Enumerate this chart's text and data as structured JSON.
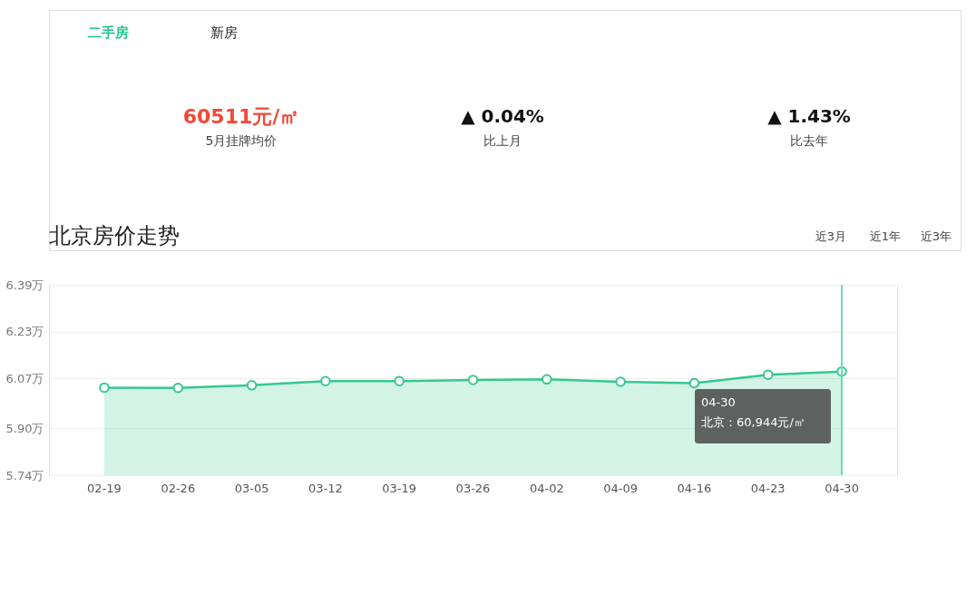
{
  "chart_data": {
    "type": "area",
    "title": "北京房价走势",
    "categories": [
      "02-19",
      "02-26",
      "03-05",
      "03-12",
      "03-19",
      "03-26",
      "04-02",
      "04-09",
      "04-16",
      "04-23",
      "04-30"
    ],
    "series": [
      {
        "color": "#34c88f",
        "values": [
          6.039,
          6.038,
          6.047,
          6.061,
          6.061,
          6.065,
          6.067,
          6.059,
          6.054,
          6.083,
          6.094
        ]
      }
    ],
    "ylim": [
      5.74,
      6.39
    ],
    "yticks": [
      {
        "value": 5.74,
        "label": "5.74万"
      },
      {
        "value": 5.9,
        "label": "5.90万"
      },
      {
        "value": 6.07,
        "label": "6.07万"
      },
      {
        "value": 6.23,
        "label": "6.23万"
      },
      {
        "value": 6.39,
        "label": "6.39万"
      }
    ],
    "grid": "y",
    "marker": "circle",
    "line_style": "solid",
    "ref_lines": [
      {
        "axis": "x",
        "value": "04-30",
        "color": "#6fdcb2"
      }
    ],
    "annotations": [
      "二手房",
      "新房",
      "60511元/㎡",
      "5月挂牌均价",
      "▲ 0.04%",
      "比上月",
      "▲ 1.43%",
      "比去年",
      "近3月",
      "近1年",
      "近3年",
      "04-30\n北京：60,944元/㎡"
    ]
  }
}
